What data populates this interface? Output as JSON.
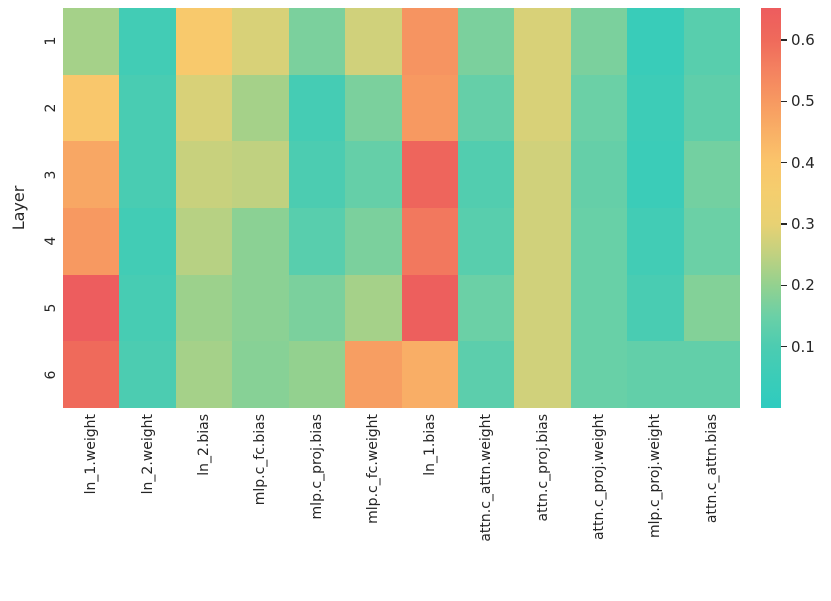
{
  "chart_data": {
    "type": "heatmap",
    "title": "",
    "xlabel": "",
    "ylabel": "Layer",
    "rows": [
      "1",
      "2",
      "3",
      "4",
      "5",
      "6"
    ],
    "columns": [
      "ln_1.weight",
      "ln_2.weight",
      "ln_2.bias",
      "mlp.c_fc.bias",
      "mlp.c_proj.bias",
      "mlp.c_fc.weight",
      "ln_1.bias",
      "attn.c_attn.weight",
      "attn.c_proj.bias",
      "attn.c_proj.weight",
      "mlp.c_proj.weight",
      "attn.c_attn.bias"
    ],
    "values": [
      [
        0.22,
        0.07,
        0.38,
        0.28,
        0.17,
        0.27,
        0.51,
        0.17,
        0.28,
        0.17,
        0.04,
        0.12
      ],
      [
        0.39,
        0.09,
        0.28,
        0.22,
        0.08,
        0.17,
        0.5,
        0.14,
        0.28,
        0.15,
        0.055,
        0.13
      ],
      [
        0.47,
        0.09,
        0.26,
        0.25,
        0.1,
        0.14,
        0.62,
        0.11,
        0.27,
        0.14,
        0.05,
        0.16
      ],
      [
        0.5,
        0.07,
        0.24,
        0.19,
        0.12,
        0.17,
        0.57,
        0.12,
        0.27,
        0.145,
        0.07,
        0.15
      ],
      [
        0.65,
        0.085,
        0.21,
        0.19,
        0.17,
        0.22,
        0.64,
        0.15,
        0.27,
        0.145,
        0.09,
        0.18
      ],
      [
        0.6,
        0.1,
        0.22,
        0.185,
        0.2,
        0.49,
        0.455,
        0.125,
        0.27,
        0.145,
        0.135,
        0.135
      ]
    ],
    "vmin": 0.0,
    "vmax": 0.652,
    "colorbar_ticks": [
      0.1,
      0.2,
      0.3,
      0.4,
      0.5,
      0.6
    ],
    "colorbar_position": "right",
    "grid": false,
    "colormap_stops": [
      [
        0.0,
        "#2fcbbf"
      ],
      [
        0.05,
        "#3bccb8"
      ],
      [
        0.1,
        "#4cccb1"
      ],
      [
        0.15,
        "#6bd0a6"
      ],
      [
        0.2,
        "#93d18f"
      ],
      [
        0.25,
        "#c0d180"
      ],
      [
        0.3,
        "#e8d173"
      ],
      [
        0.35,
        "#f4ce6e"
      ],
      [
        0.4,
        "#fac56b"
      ],
      [
        0.45,
        "#f9b066"
      ],
      [
        0.5,
        "#f79961"
      ],
      [
        0.55,
        "#f48260"
      ],
      [
        0.6,
        "#ef6a5b"
      ],
      [
        0.652,
        "#ed5c5e"
      ]
    ],
    "text_color": "#262626"
  }
}
